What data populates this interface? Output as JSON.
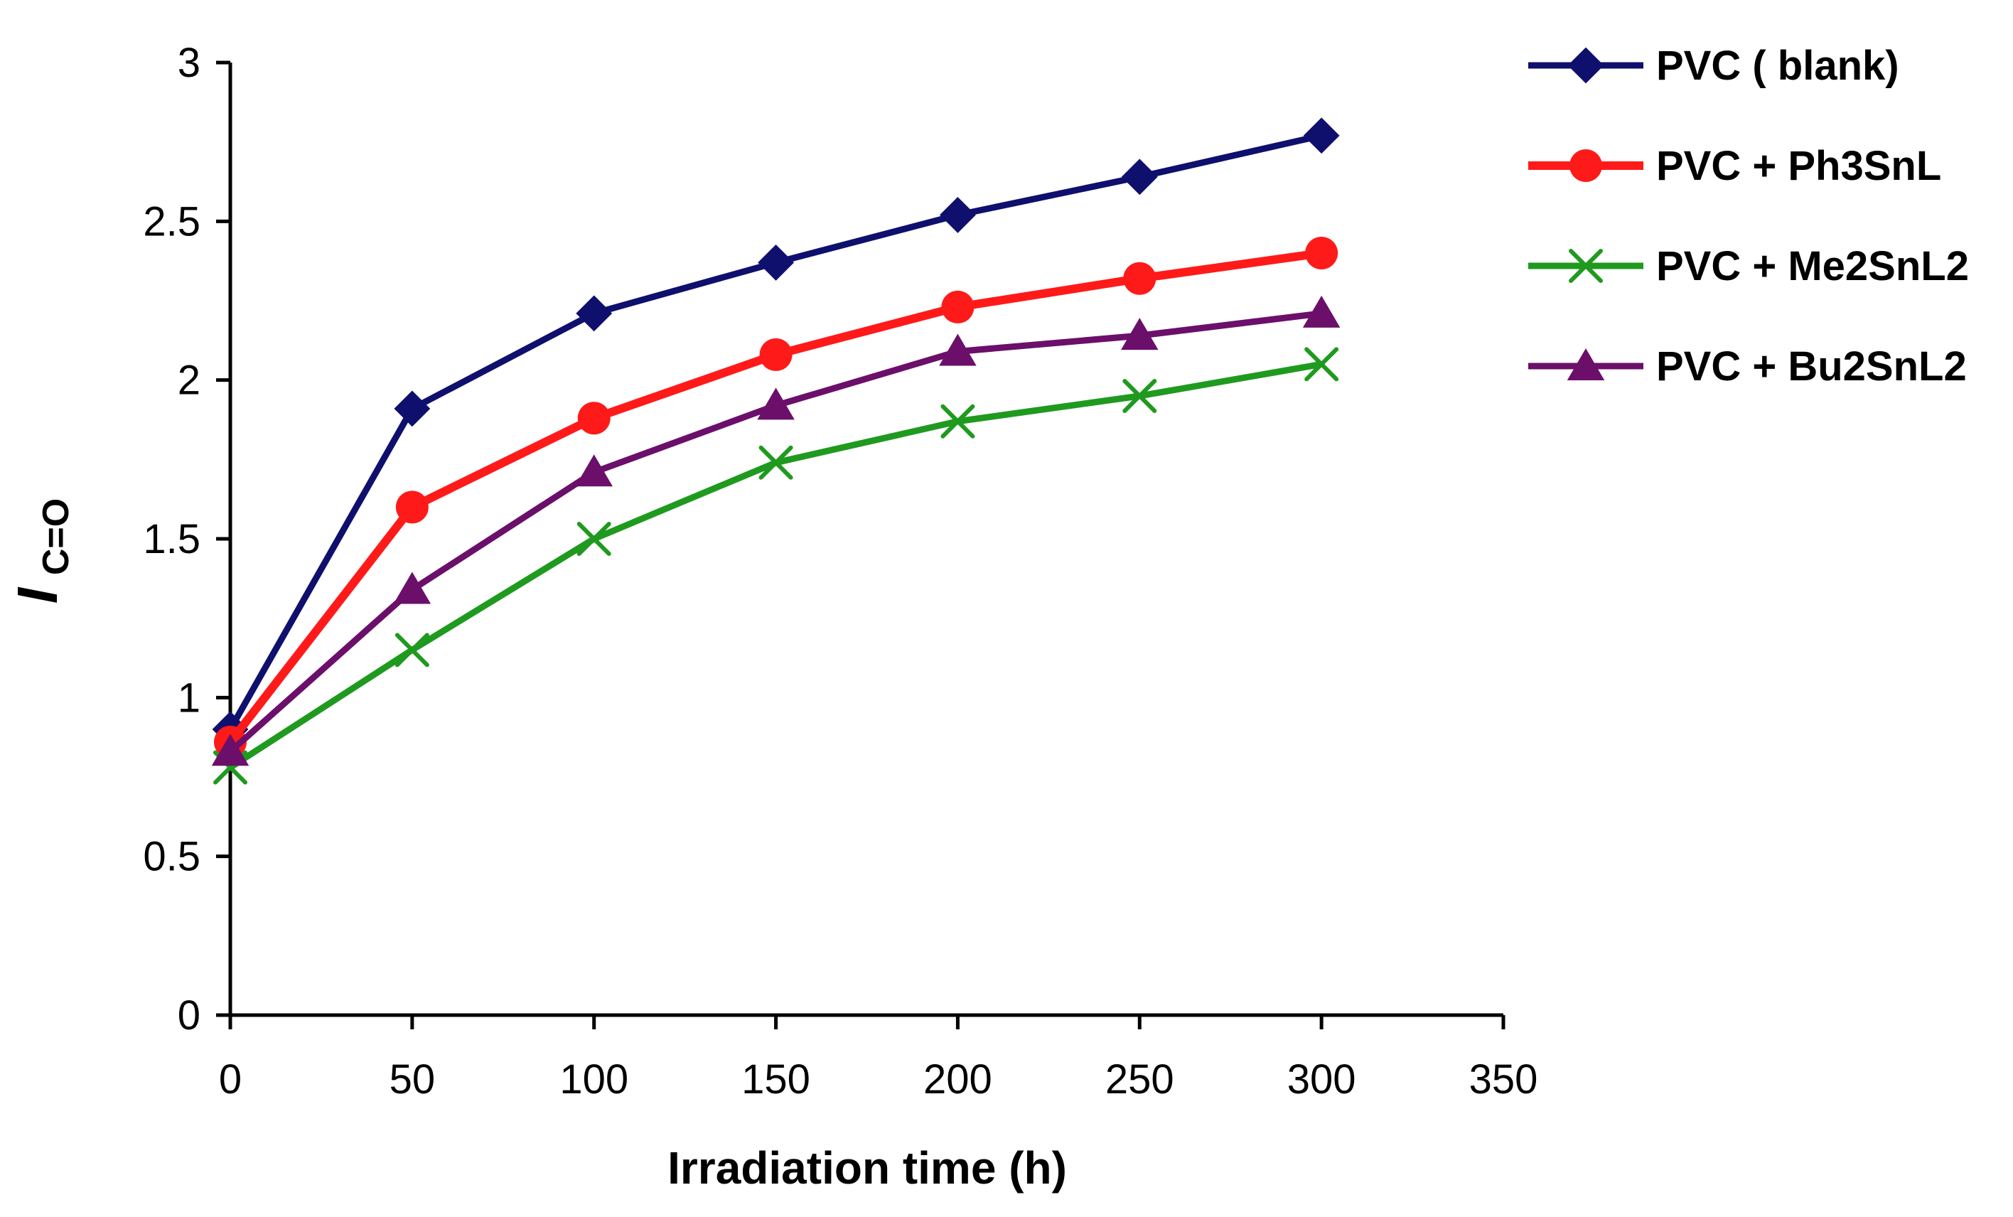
{
  "chart_data": {
    "type": "line",
    "title": "",
    "xlabel": "Irradiation time (h)",
    "ylabel": {
      "main": "I",
      "subscript": "C=O"
    },
    "xlim": [
      0,
      350
    ],
    "ylim": [
      0,
      3
    ],
    "x_ticks": [
      0,
      50,
      100,
      150,
      200,
      250,
      300,
      350
    ],
    "y_ticks": [
      0,
      0.5,
      1,
      1.5,
      2,
      2.5,
      3
    ],
    "grid": false,
    "legend_position": "top-right",
    "x": [
      0,
      50,
      100,
      150,
      200,
      250,
      300
    ],
    "series": [
      {
        "name": "PVC ( blank)",
        "color": "#0f0f6e",
        "marker": "diamond",
        "values": [
          0.9,
          1.91,
          2.21,
          2.37,
          2.52,
          2.64,
          2.77
        ]
      },
      {
        "name": "PVC + Ph3SnL",
        "color": "#ff1a1a",
        "marker": "circle",
        "values": [
          0.86,
          1.6,
          1.88,
          2.08,
          2.23,
          2.32,
          2.4
        ]
      },
      {
        "name": "PVC + Me2SnL2",
        "color": "#1f9a1f",
        "marker": "x",
        "values": [
          0.78,
          1.15,
          1.5,
          1.74,
          1.87,
          1.95,
          2.05
        ]
      },
      {
        "name": "PVC + Bu2SnL2",
        "color": "#6b0f6b",
        "marker": "triangle",
        "values": [
          0.83,
          1.34,
          1.71,
          1.92,
          2.09,
          2.14,
          2.21
        ]
      }
    ]
  }
}
